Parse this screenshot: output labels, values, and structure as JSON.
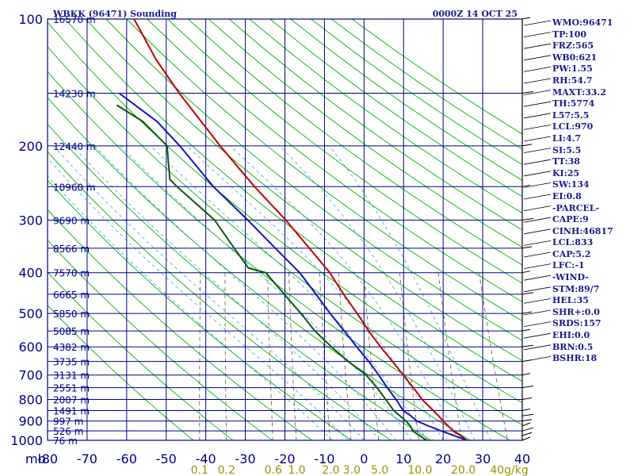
{
  "chart_data": {
    "type": "line",
    "title": "WBKK (96471) Sounding",
    "subtitle": "0000Z 14 OCT 25",
    "axis_unit_left": "mb",
    "xlim": [
      -80,
      40
    ],
    "temperature_ticks": [
      "-80",
      "-70",
      "-60",
      "-50",
      "-40",
      "-30",
      "-20",
      "-10",
      "0",
      "10",
      "20",
      "30",
      "40"
    ],
    "pressure_levels": [
      100,
      200,
      300,
      400,
      500,
      600,
      700,
      800,
      900,
      1000
    ],
    "pressure_tick_labels": [
      "100",
      "200",
      "300",
      "400",
      "500",
      "600",
      "700",
      "800",
      "900",
      "1000"
    ],
    "height_labels": [
      {
        "p": 100,
        "label": "16570 m"
      },
      {
        "p": 150,
        "label": "14230 m"
      },
      {
        "p": 200,
        "label": "12440 m"
      },
      {
        "p": 250,
        "label": "10960 m"
      },
      {
        "p": 300,
        "label": "9690 m"
      },
      {
        "p": 350,
        "label": "8566 m"
      },
      {
        "p": 400,
        "label": "7570 m"
      },
      {
        "p": 450,
        "label": "6665 m"
      },
      {
        "p": 500,
        "label": "5850 m"
      },
      {
        "p": 550,
        "label": "5085 m"
      },
      {
        "p": 600,
        "label": "4382 m"
      },
      {
        "p": 650,
        "label": "3735 m"
      },
      {
        "p": 700,
        "label": "3131 m"
      },
      {
        "p": 750,
        "label": "2551 m"
      },
      {
        "p": 800,
        "label": "2007 m"
      },
      {
        "p": 850,
        "label": "1491 m"
      },
      {
        "p": 900,
        "label": "997 m"
      },
      {
        "p": 950,
        "label": "526 m"
      },
      {
        "p": 1000,
        "label": "76 m"
      }
    ],
    "mixing_ratio_labels": [
      {
        "w": 0.1,
        "label": "0.1"
      },
      {
        "w": 0.2,
        "label": "0.2"
      },
      {
        "w": 0.6,
        "label": "0.6"
      },
      {
        "w": 1.0,
        "label": "1.0"
      },
      {
        "w": 2.0,
        "label": "2.0"
      },
      {
        "w": 3.0,
        "label": "3.0"
      },
      {
        "w": 5.0,
        "label": "5.0"
      },
      {
        "w": 10.0,
        "label": "10.0"
      },
      {
        "w": 20.0,
        "label": "20.0"
      },
      {
        "w": 40.0,
        "label": "40g/kg"
      }
    ],
    "series": [
      {
        "label": "temperature",
        "color": "#c00000",
        "points": [
          {
            "p": 1008,
            "t": 26.8
          },
          {
            "p": 1000,
            "t": 26.0
          },
          {
            "p": 975,
            "t": 24.2
          },
          {
            "p": 950,
            "t": 22.0
          },
          {
            "p": 925,
            "t": 20.6
          },
          {
            "p": 900,
            "t": 19.0
          },
          {
            "p": 875,
            "t": 17.6
          },
          {
            "p": 850,
            "t": 16.0
          },
          {
            "p": 800,
            "t": 12.6
          },
          {
            "p": 750,
            "t": 9.8
          },
          {
            "p": 700,
            "t": 6.6
          },
          {
            "p": 650,
            "t": 3.2
          },
          {
            "p": 600,
            "t": -0.6
          },
          {
            "p": 550,
            "t": -4.4
          },
          {
            "p": 500,
            "t": -8.2
          },
          {
            "p": 450,
            "t": -12.6
          },
          {
            "p": 400,
            "t": -17.2
          },
          {
            "p": 350,
            "t": -23.6
          },
          {
            "p": 300,
            "t": -31.0
          },
          {
            "p": 250,
            "t": -40.6
          },
          {
            "p": 200,
            "t": -51.4
          },
          {
            "p": 150,
            "t": -64.4
          },
          {
            "p": 125,
            "t": -71.9
          },
          {
            "p": 100,
            "t": -79.6
          }
        ]
      },
      {
        "label": "dewpoint",
        "color": "#0a5a0a",
        "points": [
          {
            "p": 1008,
            "t": 24.5
          },
          {
            "p": 1000,
            "t": 15.8
          },
          {
            "p": 950,
            "t": 11.8
          },
          {
            "p": 925,
            "t": 11.0
          },
          {
            "p": 900,
            "t": 9.6
          },
          {
            "p": 850,
            "t": 6.0
          },
          {
            "p": 800,
            "t": 3.4
          },
          {
            "p": 750,
            "t": 0.6
          },
          {
            "p": 700,
            "t": -2.8
          },
          {
            "p": 650,
            "t": -8.0
          },
          {
            "p": 600,
            "t": -13.0
          },
          {
            "p": 550,
            "t": -18.0
          },
          {
            "p": 500,
            "t": -22.4
          },
          {
            "p": 450,
            "t": -27.6
          },
          {
            "p": 400,
            "t": -33.4
          },
          {
            "p": 390,
            "t": -38.0
          },
          {
            "p": 350,
            "t": -42.6
          },
          {
            "p": 300,
            "t": -49.0
          },
          {
            "p": 250,
            "t": -60.2
          },
          {
            "p": 240,
            "t": -62.4
          },
          {
            "p": 200,
            "t": -64.8
          },
          {
            "p": 175,
            "t": -72.2
          },
          {
            "p": 160,
            "t": -79.6
          }
        ]
      },
      {
        "label": "parcel",
        "color": "#1414b4",
        "points": [
          {
            "p": 1000,
            "t": 26.0
          },
          {
            "p": 975,
            "t": 22.6
          },
          {
            "p": 950,
            "t": 19.0
          },
          {
            "p": 925,
            "t": 15.6
          },
          {
            "p": 900,
            "t": 12.4
          },
          {
            "p": 875,
            "t": 10.6
          },
          {
            "p": 850,
            "t": 8.4
          },
          {
            "p": 800,
            "t": 6.0
          },
          {
            "p": 750,
            "t": 3.2
          },
          {
            "p": 700,
            "t": 0.4
          },
          {
            "p": 650,
            "t": -2.8
          },
          {
            "p": 600,
            "t": -6.6
          },
          {
            "p": 550,
            "t": -10.6
          },
          {
            "p": 500,
            "t": -15.0
          },
          {
            "p": 450,
            "t": -19.6
          },
          {
            "p": 400,
            "t": -24.8
          },
          {
            "p": 350,
            "t": -32.2
          },
          {
            "p": 300,
            "t": -40.6
          },
          {
            "p": 250,
            "t": -51.0
          },
          {
            "p": 200,
            "t": -61.6
          },
          {
            "p": 175,
            "t": -68.6
          },
          {
            "p": 150,
            "t": -79.6
          }
        ]
      }
    ],
    "wind_levels": [
      1000,
      975,
      950,
      925,
      900,
      875,
      850,
      800,
      750,
      700,
      650,
      600,
      550,
      500,
      450,
      400,
      350,
      300,
      250,
      200,
      150,
      100
    ],
    "stats": [
      "WMO:96471",
      "TP:100",
      "FRZ:565",
      "WB0:621",
      "PW:1.55",
      "RH:54.7",
      "MAXT:33.2",
      "TH:5774",
      "L57:5.5",
      "LCL:970",
      "LI:4.7",
      "SI:5.5",
      "TT:38",
      "KI:25",
      "SW:134",
      "EI:0.8",
      "-PARCEL-",
      "CAPE:9",
      "CINH:46817",
      "LCL:833",
      "CAP:5.2",
      "LFC:-1",
      "-WIND-",
      "STM:89/7",
      "HEL:35",
      "SHR+:0.0",
      "SRDS:157",
      "EHI:0.0",
      "BRN:0.5",
      "BSHR:18"
    ],
    "colors": {
      "frame": "#00008b",
      "isotherm": "#00008b",
      "dry_adiabat": "#00b000",
      "moist_adiabat": "#40a0e0",
      "mixing_ratio": "#6b5a2a",
      "temperature": "#c00000",
      "dewpoint": "#0a5a0a",
      "parcel": "#1414b4",
      "text": "#1a1a8c",
      "mixing_text": "#a09000"
    }
  }
}
